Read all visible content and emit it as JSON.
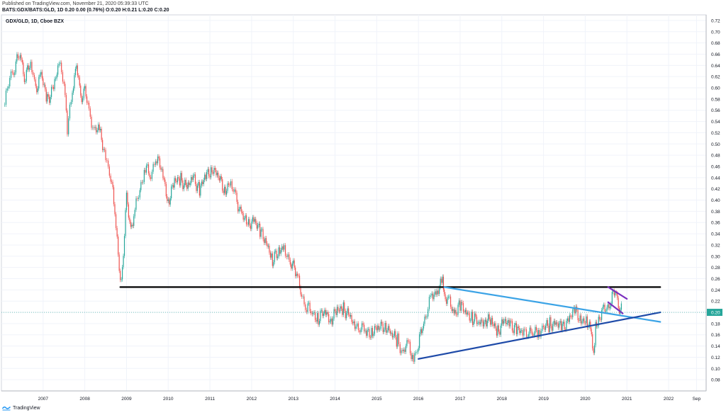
{
  "header": {
    "published": "Published on TradingView.com, November 21, 2020 05:39:33 UTC",
    "symbol_line": "BATS:GDX/BATS:GLD, 1D 0.20 0.00 (0.76%) O:0.20 H:0.21 L:0.20 C:0.20"
  },
  "brand": {
    "name": "TradingView",
    "icon": "tradingview-logo-icon"
  },
  "chart_data": {
    "type": "line",
    "legend_title": "GDX/GLD, 1D, Cboe BZX",
    "y_ticks": [
      "0.72",
      "0.70",
      "0.68",
      "0.66",
      "0.64",
      "0.62",
      "0.60",
      "0.58",
      "0.56",
      "0.54",
      "0.52",
      "0.50",
      "0.48",
      "0.46",
      "0.44",
      "0.42",
      "0.40",
      "0.38",
      "0.36",
      "0.34",
      "0.32",
      "0.30",
      "0.28",
      "0.26",
      "0.24",
      "0.22",
      "0.20",
      "0.18",
      "0.16",
      "0.14",
      "0.12",
      "0.10",
      "0.08"
    ],
    "x_ticks": [
      "2007",
      "2008",
      "2009",
      "2010",
      "2011",
      "2012",
      "2013",
      "2014",
      "2015",
      "2016",
      "2017",
      "2018",
      "2019",
      "2020",
      "2021",
      "2022",
      "Sep"
    ],
    "ylim": [
      0.06,
      0.73
    ],
    "xlim": [
      2006.0,
      2022.9
    ],
    "x_tick_positions": [
      2007,
      2008,
      2009,
      2010,
      2011,
      2012,
      2013,
      2014,
      2015,
      2016,
      2017,
      2018,
      2019,
      2020,
      2021,
      2022,
      2022.67
    ],
    "last_price": "0.20",
    "colors": {
      "up": "#26a69a",
      "down": "#ef5350",
      "grid": "#f0f3fa",
      "axis": "#131722",
      "price_label": "#26a69a"
    },
    "series": [
      {
        "values_x": [
          2006.08,
          2006.2,
          2006.32,
          2006.45,
          2006.55,
          2006.7,
          2006.82,
          2006.95,
          2007.1,
          2007.25,
          2007.38,
          2007.5,
          2007.58,
          2007.7,
          2007.8,
          2007.9,
          2008.0,
          2008.1,
          2008.22,
          2008.35,
          2008.5,
          2008.62,
          2008.72,
          2008.8,
          2008.85,
          2008.9,
          2009.0,
          2009.1,
          2009.2,
          2009.32,
          2009.45,
          2009.58,
          2009.7,
          2009.85,
          2010.0,
          2010.15,
          2010.3,
          2010.45,
          2010.6,
          2010.75,
          2010.9,
          2011.05,
          2011.2,
          2011.35,
          2011.5,
          2011.62,
          2011.75,
          2011.9,
          2012.05,
          2012.2,
          2012.35,
          2012.5,
          2012.65,
          2012.78,
          2012.9,
          2013.0,
          2013.1,
          2013.2,
          2013.32,
          2013.45,
          2013.6,
          2013.75,
          2013.9,
          2014.05,
          2014.2,
          2014.35,
          2014.5,
          2014.62,
          2014.75,
          2014.9,
          2015.05,
          2015.2,
          2015.35,
          2015.5,
          2015.62,
          2015.75,
          2015.88,
          2016.0,
          2016.1,
          2016.2,
          2016.32,
          2016.45,
          2016.58,
          2016.62,
          2016.72,
          2016.85,
          2017.0,
          2017.15,
          2017.3,
          2017.45,
          2017.6,
          2017.75,
          2017.9,
          2018.05,
          2018.2,
          2018.35,
          2018.5,
          2018.62,
          2018.75,
          2018.88,
          2019.0,
          2019.15,
          2019.3,
          2019.45,
          2019.6,
          2019.75,
          2019.9,
          2020.05,
          2020.15,
          2020.2,
          2020.25,
          2020.32,
          2020.42,
          2020.52,
          2020.62,
          2020.72,
          2020.82,
          2020.89
        ],
        "values_y": [
          0.57,
          0.62,
          0.64,
          0.66,
          0.62,
          0.64,
          0.6,
          0.62,
          0.58,
          0.6,
          0.64,
          0.62,
          0.52,
          0.6,
          0.64,
          0.58,
          0.6,
          0.55,
          0.53,
          0.52,
          0.48,
          0.44,
          0.38,
          0.31,
          0.25,
          0.28,
          0.4,
          0.35,
          0.38,
          0.42,
          0.46,
          0.44,
          0.48,
          0.45,
          0.4,
          0.43,
          0.44,
          0.42,
          0.44,
          0.42,
          0.44,
          0.46,
          0.44,
          0.42,
          0.43,
          0.4,
          0.38,
          0.35,
          0.37,
          0.34,
          0.33,
          0.29,
          0.31,
          0.32,
          0.28,
          0.29,
          0.26,
          0.23,
          0.21,
          0.2,
          0.19,
          0.2,
          0.19,
          0.2,
          0.21,
          0.19,
          0.17,
          0.18,
          0.16,
          0.17,
          0.17,
          0.18,
          0.16,
          0.15,
          0.13,
          0.14,
          0.12,
          0.14,
          0.18,
          0.2,
          0.23,
          0.24,
          0.25,
          0.23,
          0.22,
          0.2,
          0.21,
          0.2,
          0.19,
          0.18,
          0.19,
          0.18,
          0.17,
          0.18,
          0.18,
          0.17,
          0.16,
          0.17,
          0.16,
          0.17,
          0.17,
          0.18,
          0.18,
          0.17,
          0.19,
          0.2,
          0.19,
          0.18,
          0.16,
          0.13,
          0.17,
          0.19,
          0.2,
          0.21,
          0.22,
          0.24,
          0.21,
          0.2
        ]
      }
    ],
    "trendlines": [
      {
        "id": "support-black",
        "color": "#000000",
        "x": [
          2008.85,
          2021.8
        ],
        "y": [
          0.245,
          0.245
        ]
      },
      {
        "id": "descending-lightblue",
        "color": "#3ba3e6",
        "x": [
          2016.62,
          2021.8
        ],
        "y": [
          0.245,
          0.183
        ]
      },
      {
        "id": "ascending-darkblue",
        "color": "#1e4aa8",
        "x": [
          2016.0,
          2021.8
        ],
        "y": [
          0.117,
          0.2
        ]
      },
      {
        "id": "flag-upper-purple",
        "color": "#7b2fbf",
        "x": [
          2020.55,
          2021.0
        ],
        "y": [
          0.245,
          0.224
        ]
      },
      {
        "id": "flag-lower-purple",
        "color": "#7b2fbf",
        "x": [
          2020.55,
          2020.9
        ],
        "y": [
          0.218,
          0.198
        ]
      }
    ]
  }
}
